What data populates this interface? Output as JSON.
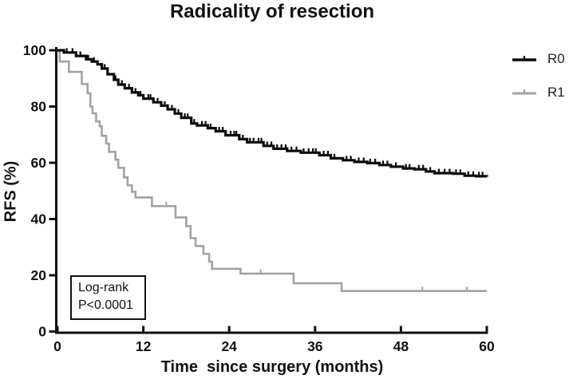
{
  "figure": {
    "background": "#ffffff"
  },
  "chart_data": {
    "type": "line",
    "subtype": "kaplan-meier-step",
    "title": "Radicality of resection",
    "xlabel": "Time  since surgery (months)",
    "ylabel": "RFS (%)",
    "xlim": [
      0,
      60
    ],
    "ylim": [
      0,
      100
    ],
    "xticks": [
      0,
      12,
      24,
      36,
      48,
      60
    ],
    "yticks": [
      0,
      20,
      40,
      60,
      80,
      100
    ],
    "grid": false,
    "legend": {
      "position": "right"
    },
    "annotation": {
      "line1": "Log-rank",
      "line2": "P<0.0001"
    },
    "axis_color": "#111111",
    "series": [
      {
        "name": "R0",
        "color": "#0b0b0b",
        "points_month_percent": [
          [
            0,
            100
          ],
          [
            0.9,
            99.2
          ],
          [
            2.6,
            98
          ],
          [
            4,
            96.8
          ],
          [
            4.8,
            96
          ],
          [
            5.6,
            95
          ],
          [
            6.2,
            93.5
          ],
          [
            7,
            91.5
          ],
          [
            7.9,
            89.5
          ],
          [
            8.5,
            87.8
          ],
          [
            9.4,
            86.5
          ],
          [
            10.4,
            85
          ],
          [
            11.3,
            84
          ],
          [
            12,
            82.8
          ],
          [
            13.4,
            81.5
          ],
          [
            14.5,
            80.3
          ],
          [
            15.4,
            79
          ],
          [
            16.4,
            77.5
          ],
          [
            17.3,
            76
          ],
          [
            18.7,
            74
          ],
          [
            19.5,
            73.3
          ],
          [
            21,
            72.3
          ],
          [
            22.1,
            71.2
          ],
          [
            23.5,
            69.8
          ],
          [
            25.4,
            68.4
          ],
          [
            26.5,
            67.3
          ],
          [
            28.8,
            66
          ],
          [
            30.2,
            65
          ],
          [
            32.1,
            64.2
          ],
          [
            34,
            63.6
          ],
          [
            36.6,
            62.7
          ],
          [
            38.2,
            61.6
          ],
          [
            39.9,
            60.9
          ],
          [
            41.5,
            60.3
          ],
          [
            43.3,
            59.9
          ],
          [
            45,
            59.2
          ],
          [
            46.6,
            58.6
          ],
          [
            48.3,
            58
          ],
          [
            49.9,
            57.7
          ],
          [
            51.5,
            56.9
          ],
          [
            52.7,
            56.3
          ],
          [
            55.3,
            56.1
          ],
          [
            56.9,
            55.4
          ],
          [
            58.5,
            55.2
          ],
          [
            60,
            55
          ]
        ],
        "censor_marks_months": [
          1.3,
          2.1,
          3.2,
          4.3,
          5.1,
          6.6,
          8.1,
          9.0,
          10.0,
          10.9,
          11.6,
          12.7,
          13.0,
          14.0,
          15.0,
          16.0,
          16.9,
          17.8,
          18.2,
          19.1,
          20.2,
          20.7,
          21.4,
          22.6,
          23.1,
          24.2,
          24.7,
          25.0,
          25.9,
          26.9,
          27.4,
          28.1,
          28.5,
          29.3,
          29.9,
          30.7,
          31.3,
          31.9,
          32.7,
          33.4,
          34.4,
          35.1,
          35.7,
          36.1,
          37.2,
          37.8,
          38.7,
          40.4,
          41.0,
          42.1,
          42.8,
          43.7,
          44.4,
          45.5,
          46.1,
          47.3,
          48.7,
          49.2,
          50.5,
          51.1,
          52.1,
          53.3,
          54.1,
          54.8,
          55.7,
          56.3,
          57.4,
          58.1,
          58.9,
          59.4
        ]
      },
      {
        "name": "R1",
        "color": "#a3a3a3",
        "points_month_percent": [
          [
            0,
            100
          ],
          [
            0.3,
            96
          ],
          [
            1.6,
            92.3
          ],
          [
            3.4,
            88
          ],
          [
            4.2,
            84.7
          ],
          [
            4.6,
            80
          ],
          [
            4.9,
            77.6
          ],
          [
            5.4,
            74.7
          ],
          [
            5.9,
            73
          ],
          [
            6.2,
            69.6
          ],
          [
            6.8,
            66.8
          ],
          [
            7.2,
            63.9
          ],
          [
            8.1,
            61.1
          ],
          [
            8.5,
            58.2
          ],
          [
            9.3,
            54.8
          ],
          [
            9.8,
            52
          ],
          [
            10.4,
            49.7
          ],
          [
            10.9,
            47.7
          ],
          [
            13.2,
            44.6
          ],
          [
            16.5,
            40.6
          ],
          [
            18,
            37.5
          ],
          [
            18.6,
            33.2
          ],
          [
            19.3,
            30.4
          ],
          [
            20.4,
            27.6
          ],
          [
            21.2,
            24.8
          ],
          [
            21.6,
            22.3
          ],
          [
            25.6,
            20.6
          ],
          [
            33,
            17.2
          ],
          [
            39.7,
            14.4
          ],
          [
            60,
            14.4
          ]
        ],
        "censor_marks_months": [
          15.2,
          28.4,
          51.0,
          57.2
        ]
      }
    ]
  }
}
